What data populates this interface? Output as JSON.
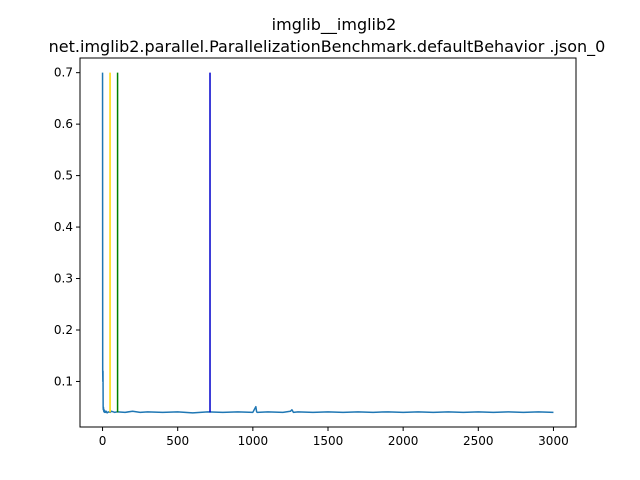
{
  "chart_data": {
    "type": "line",
    "title": "imglib__imglib2",
    "subtitle": "net.imglib2.parallel.ParallelizationBenchmark.defaultBehavior .json_0",
    "xlabel": "",
    "ylabel": "",
    "xlim": [
      -150,
      3150
    ],
    "ylim": [
      0.0115,
      0.7285
    ],
    "xticks": [
      0,
      500,
      1000,
      1500,
      2000,
      2500,
      3000
    ],
    "yticks": [
      0.1,
      0.2,
      0.3,
      0.4,
      0.5,
      0.6,
      0.7
    ],
    "grid": false,
    "series": [
      {
        "color": "#1f77b4",
        "x": [
          0,
          1,
          2,
          3,
          4,
          5,
          6,
          8,
          10,
          12,
          15,
          20,
          25,
          30,
          40,
          50,
          60,
          80,
          100,
          150,
          200,
          250,
          300,
          400,
          500,
          600,
          700,
          800,
          900,
          1000,
          1020,
          1025,
          1030,
          1100,
          1200,
          1250,
          1260,
          1270,
          1300,
          1400,
          1500,
          1600,
          1700,
          1800,
          1900,
          2000,
          2100,
          2200,
          2300,
          2400,
          2500,
          2600,
          2700,
          2800,
          2900,
          3000
        ],
        "y": [
          0.7,
          0.12,
          0.1,
          0.12,
          0.05,
          0.045,
          0.05,
          0.042,
          0.045,
          0.04,
          0.043,
          0.04,
          0.042,
          0.039,
          0.041,
          0.04,
          0.042,
          0.04,
          0.041,
          0.04,
          0.042,
          0.04,
          0.041,
          0.04,
          0.041,
          0.039,
          0.041,
          0.04,
          0.041,
          0.04,
          0.051,
          0.041,
          0.04,
          0.041,
          0.04,
          0.042,
          0.045,
          0.04,
          0.041,
          0.04,
          0.041,
          0.04,
          0.041,
          0.04,
          0.041,
          0.04,
          0.041,
          0.04,
          0.041,
          0.04,
          0.041,
          0.04,
          0.041,
          0.04,
          0.041,
          0.04
        ]
      }
    ],
    "vlines": [
      {
        "x": 50,
        "ymin": 0.04,
        "ymax": 0.7,
        "color": "#ffd700"
      },
      {
        "x": 100,
        "ymin": 0.04,
        "ymax": 0.7,
        "color": "#008000"
      },
      {
        "x": 715,
        "ymin": 0.04,
        "ymax": 0.7,
        "color": "#0000cc"
      }
    ]
  }
}
